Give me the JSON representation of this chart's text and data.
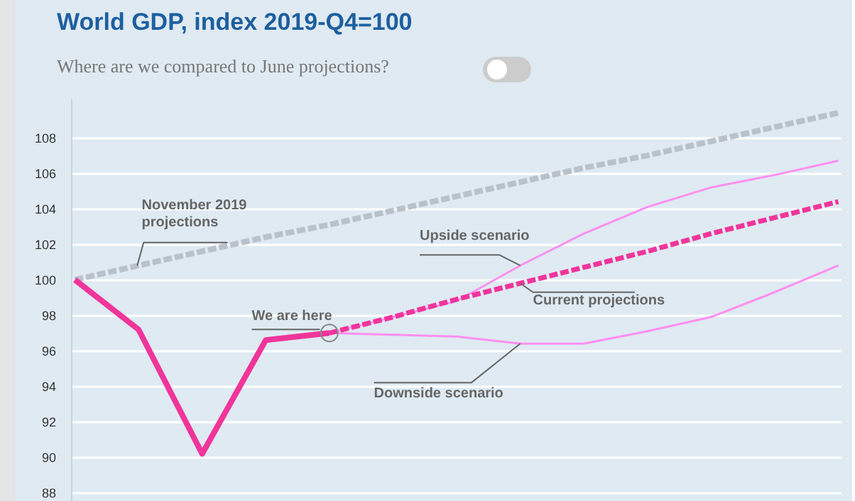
{
  "chart_data": {
    "type": "line",
    "title": "World GDP, index 2019-Q4=100",
    "subtitle": "Where are we compared to June projections?",
    "categories": [
      null,
      null,
      null,
      null,
      null,
      null,
      null,
      null,
      null,
      null,
      null,
      null,
      null
    ],
    "series": [
      {
        "name": "November 2019 projections",
        "color": "#b9c2cb",
        "line_style": "dashed",
        "values": [
          100,
          100.8,
          101.6,
          102.4,
          103.1,
          103.9,
          104.7,
          105.5,
          106.3,
          107.0,
          107.8,
          108.6,
          109.4
        ]
      },
      {
        "name": "Upside scenario",
        "color": "#ff8ff0",
        "line_style": "solid",
        "values": [
          null,
          null,
          null,
          null,
          97.0,
          97.9,
          98.8,
          100.8,
          102.6,
          104.1,
          105.2,
          105.9,
          106.7
        ]
      },
      {
        "name": "Downside scenario",
        "color": "#ff8ff0",
        "line_style": "solid",
        "values": [
          null,
          null,
          null,
          null,
          97.0,
          96.9,
          96.8,
          96.4,
          96.4,
          97.1,
          97.9,
          99.3,
          100.8
        ]
      },
      {
        "name": "Current projections",
        "color": "#f0359b",
        "line_style": "dashed",
        "values": [
          null,
          null,
          null,
          null,
          97.0,
          97.9,
          98.9,
          99.8,
          100.7,
          101.6,
          102.6,
          103.5,
          104.4
        ]
      },
      {
        "color": "#f0359b",
        "line_style": "solid",
        "values": [
          100,
          97.2,
          90.2,
          96.6,
          97.0,
          null,
          null,
          null,
          null,
          null,
          null,
          null,
          null
        ]
      }
    ],
    "annotations": [
      {
        "text": "We are here",
        "y": 97.0
      }
    ],
    "ylim": [
      87.5,
      110.2
    ],
    "yticks": [
      88,
      90,
      92,
      94,
      96,
      98,
      100,
      102,
      104,
      106,
      108
    ],
    "grid": "y",
    "tick_labels": "y"
  }
}
